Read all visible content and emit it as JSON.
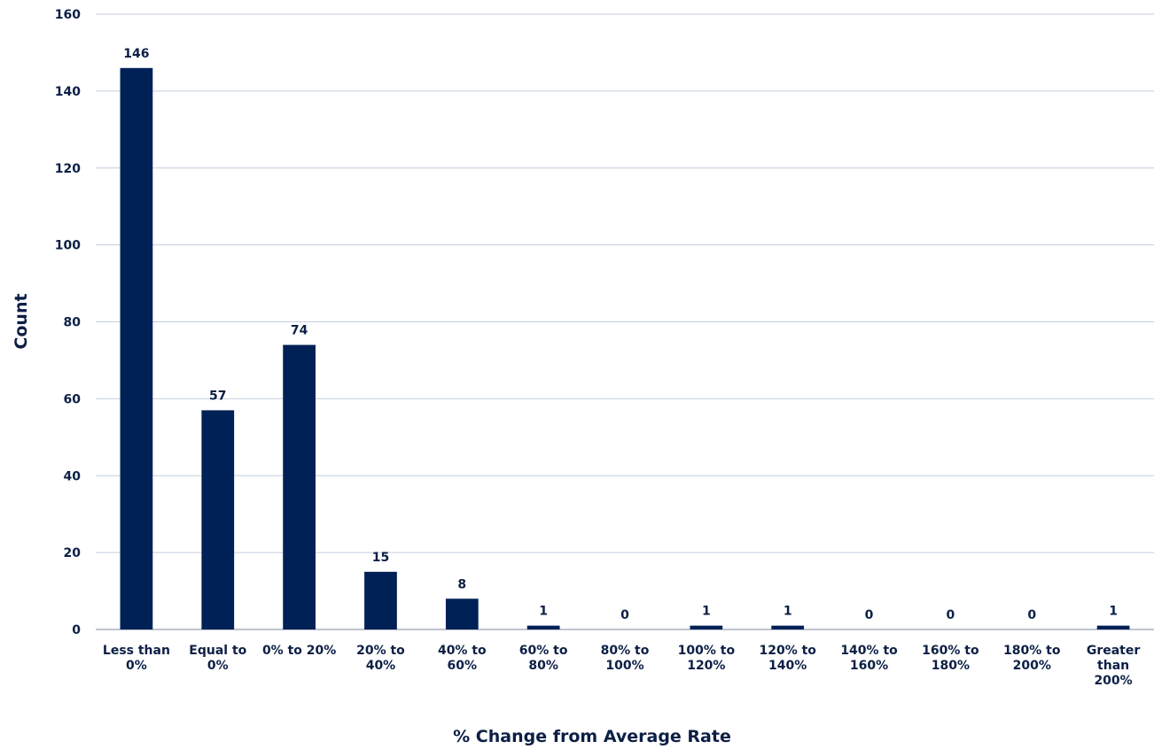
{
  "chart_data": {
    "type": "bar",
    "title": "",
    "xlabel": "% Change from Average Rate",
    "ylabel": "Count",
    "ylim": [
      0,
      160
    ],
    "yticks": [
      0,
      20,
      40,
      60,
      80,
      100,
      120,
      140,
      160
    ],
    "grid": true,
    "legend": "none",
    "bar_color": "#002156",
    "categories": [
      [
        "Less than",
        "0%"
      ],
      [
        "Equal to",
        "0%"
      ],
      [
        "0% to 20%"
      ],
      [
        "20% to",
        "40%"
      ],
      [
        "40% to",
        "60%"
      ],
      [
        "60% to",
        "80%"
      ],
      [
        "80% to",
        "100%"
      ],
      [
        "100% to",
        "120%"
      ],
      [
        "120% to",
        "140%"
      ],
      [
        "140% to",
        "160%"
      ],
      [
        "160% to",
        "180%"
      ],
      [
        "180% to",
        "200%"
      ],
      [
        "Greater",
        "than",
        "200%"
      ]
    ],
    "values": [
      146,
      57,
      74,
      15,
      8,
      1,
      0,
      1,
      1,
      0,
      0,
      0,
      1
    ]
  }
}
